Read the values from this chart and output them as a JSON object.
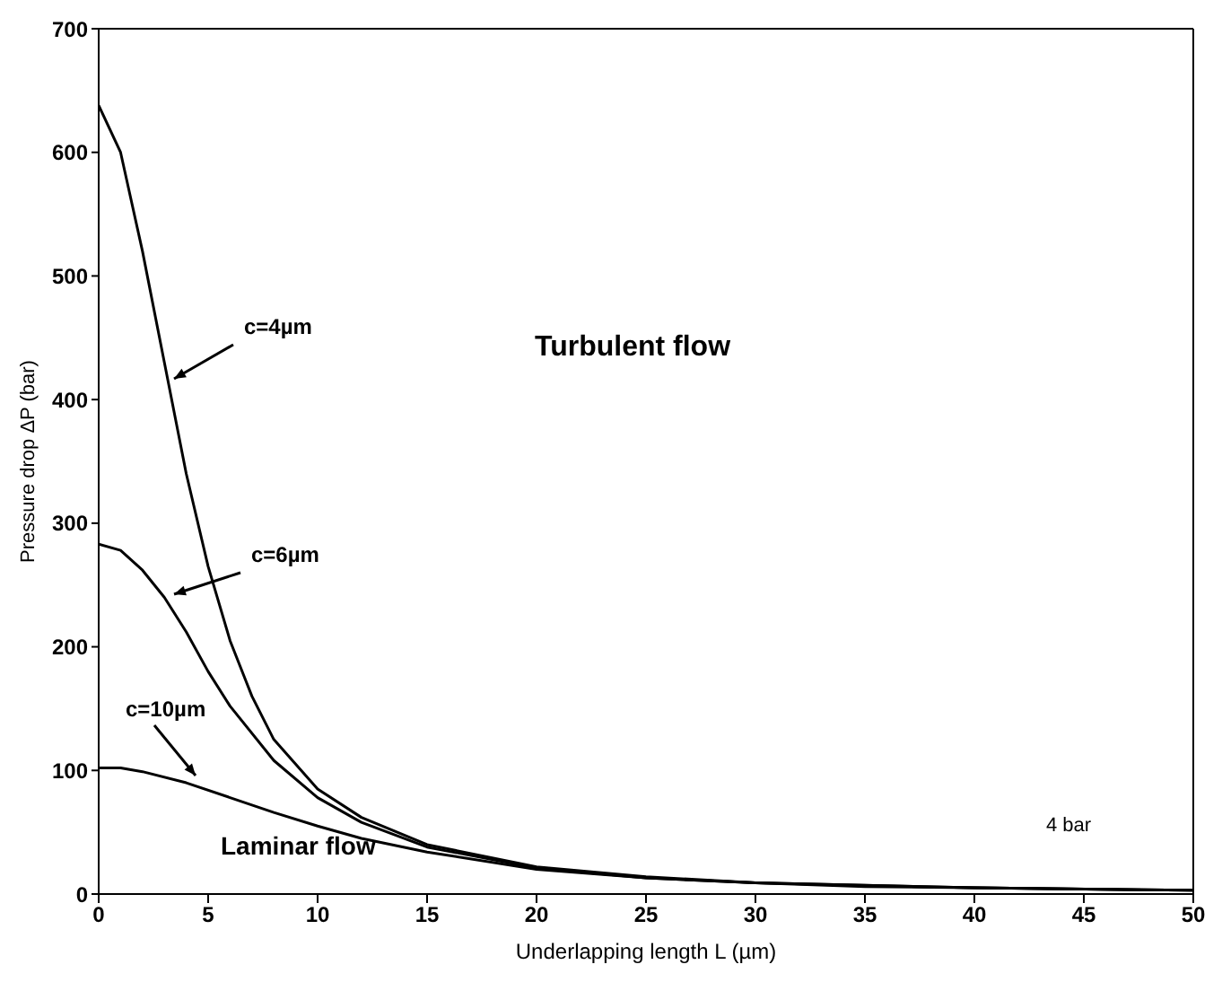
{
  "chart_data": {
    "type": "line",
    "xlabel": "Underlapping length L (µm)",
    "ylabel": "Pressure drop ΔP (bar)",
    "xlim": [
      0,
      50
    ],
    "xticks": [
      0,
      5,
      10,
      15,
      20,
      25,
      30,
      35,
      40,
      45,
      50
    ],
    "ylim": [
      0,
      700
    ],
    "yticks": [
      0,
      100,
      200,
      300,
      400,
      500,
      600,
      700
    ],
    "grid": false,
    "legend": false,
    "marker": "none",
    "line_style": "solid",
    "series": [
      {
        "color": "#000000",
        "x": [
          0,
          1,
          2,
          3,
          4,
          5,
          6,
          7,
          8,
          10,
          12,
          15,
          20,
          25,
          30,
          35,
          40,
          45,
          50
        ],
        "values": [
          638,
          600,
          520,
          430,
          340,
          265,
          205,
          160,
          125,
          85,
          62,
          40,
          22,
          14,
          9,
          6,
          5,
          4,
          3
        ]
      },
      {
        "color": "#000000",
        "x": [
          0,
          1,
          2,
          3,
          4,
          5,
          6,
          8,
          10,
          12,
          15,
          20,
          25,
          30,
          40,
          50
        ],
        "values": [
          283,
          278,
          262,
          240,
          212,
          180,
          152,
          108,
          78,
          58,
          38,
          21,
          13,
          9,
          5,
          3
        ]
      },
      {
        "color": "#000000",
        "x": [
          0,
          1,
          2,
          4,
          6,
          8,
          10,
          12,
          15,
          20,
          25,
          30,
          40,
          50
        ],
        "values": [
          102,
          102,
          99,
          90,
          78,
          66,
          55,
          45,
          34,
          20,
          13,
          9,
          5,
          3
        ]
      }
    ],
    "annotations": [
      "c=4µm",
      "c=6µm",
      "c=10µm",
      "Turbulent flow",
      "Laminar flow",
      "4 bar"
    ]
  }
}
